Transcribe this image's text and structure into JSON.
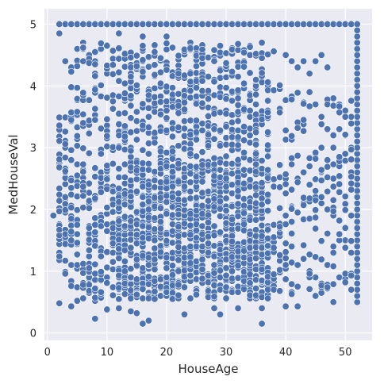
{
  "chart_data": {
    "type": "scatter",
    "title": "",
    "xlabel": "HouseAge",
    "ylabel": "MedHouseVal",
    "xlim": [
      -0.5,
      54.5
    ],
    "ylim": [
      -0.12,
      5.25
    ],
    "xticks": [
      0,
      10,
      20,
      30,
      40,
      50
    ],
    "yticks": [
      0,
      1,
      2,
      3,
      4,
      5
    ],
    "grid": true,
    "background_color": "#eaeaf2",
    "grid_color": "#ffffff",
    "marker_color": "#4c72b0",
    "marker_edge_color": "#ffffff",
    "series": [
      {
        "points": [
          [
            2,
            5.0
          ],
          [
            3,
            5.0
          ],
          [
            4,
            5.0
          ],
          [
            5,
            5.0
          ],
          [
            6,
            5.0
          ],
          [
            7,
            5.0
          ],
          [
            8,
            5.0
          ],
          [
            9,
            5.0
          ],
          [
            10,
            5.0
          ],
          [
            11,
            5.0
          ],
          [
            12,
            5.0
          ],
          [
            13,
            5.0
          ],
          [
            14,
            5.0
          ],
          [
            15,
            5.0
          ],
          [
            16,
            5.0
          ],
          [
            17,
            5.0
          ],
          [
            18,
            5.0
          ],
          [
            19,
            5.0
          ],
          [
            20,
            5.0
          ],
          [
            21,
            5.0
          ],
          [
            22,
            5.0
          ],
          [
            23,
            5.0
          ],
          [
            24,
            5.0
          ],
          [
            25,
            5.0
          ],
          [
            26,
            5.0
          ],
          [
            27,
            5.0
          ],
          [
            28,
            5.0
          ],
          [
            29,
            5.0
          ],
          [
            30,
            5.0
          ],
          [
            31,
            5.0
          ],
          [
            32,
            5.0
          ],
          [
            33,
            5.0
          ],
          [
            34,
            5.0
          ],
          [
            35,
            5.0
          ],
          [
            36,
            5.0
          ],
          [
            37,
            5.0
          ],
          [
            38,
            5.0
          ],
          [
            39,
            5.0
          ],
          [
            40,
            5.0
          ],
          [
            41,
            5.0
          ],
          [
            42,
            5.0
          ],
          [
            43,
            5.0
          ],
          [
            44,
            5.0
          ],
          [
            45,
            5.0
          ],
          [
            46,
            5.0
          ],
          [
            47,
            5.0
          ],
          [
            48,
            5.0
          ],
          [
            49,
            5.0
          ],
          [
            50,
            5.0
          ],
          [
            51,
            5.0
          ],
          [
            52,
            5.0
          ],
          [
            52,
            0.5
          ],
          [
            52,
            0.6
          ],
          [
            52,
            0.7
          ],
          [
            52,
            0.8
          ],
          [
            52,
            0.9
          ],
          [
            52,
            1.0
          ],
          [
            52,
            1.1
          ],
          [
            52,
            1.2
          ],
          [
            52,
            1.3
          ],
          [
            52,
            1.4
          ],
          [
            52,
            1.5
          ],
          [
            52,
            1.6
          ],
          [
            52,
            1.7
          ],
          [
            52,
            1.8
          ],
          [
            52,
            1.9
          ],
          [
            52,
            2.0
          ],
          [
            52,
            2.1
          ],
          [
            52,
            2.2
          ],
          [
            52,
            2.3
          ],
          [
            52,
            2.4
          ],
          [
            52,
            2.5
          ],
          [
            52,
            2.6
          ],
          [
            52,
            2.7
          ],
          [
            52,
            2.8
          ],
          [
            52,
            2.9
          ],
          [
            52,
            3.0
          ],
          [
            52,
            3.1
          ],
          [
            52,
            3.2
          ],
          [
            52,
            3.3
          ],
          [
            52,
            3.4
          ],
          [
            52,
            3.5
          ],
          [
            52,
            3.6
          ],
          [
            52,
            3.7
          ],
          [
            52,
            3.8
          ],
          [
            52,
            3.9
          ],
          [
            52,
            4.0
          ],
          [
            52,
            4.1
          ],
          [
            52,
            4.2
          ],
          [
            52,
            4.3
          ],
          [
            52,
            4.4
          ],
          [
            52,
            4.5
          ],
          [
            52,
            4.6
          ],
          [
            52,
            4.7
          ],
          [
            52,
            4.8
          ],
          [
            52,
            4.9
          ],
          [
            1,
            1.9
          ],
          [
            2,
            0.48
          ],
          [
            4,
            0.43
          ],
          [
            5,
            0.52
          ],
          [
            8,
            0.23
          ],
          [
            8,
            0.52
          ],
          [
            10,
            0.38
          ],
          [
            12,
            0.4
          ],
          [
            14,
            0.35
          ],
          [
            15,
            0.32
          ],
          [
            16,
            0.15
          ],
          [
            17,
            0.2
          ],
          [
            23,
            0.3
          ],
          [
            28,
            0.4
          ],
          [
            29,
            0.3
          ],
          [
            32,
            0.4
          ],
          [
            36,
            0.15
          ],
          [
            36,
            0.4
          ],
          [
            40,
            0.43
          ],
          [
            42,
            0.43
          ],
          [
            45,
            0.6
          ],
          [
            46,
            0.65
          ],
          [
            48,
            0.5
          ],
          [
            49,
            0.9
          ],
          [
            50,
            0.88
          ],
          [
            51,
            0.7
          ],
          [
            2,
            4.85
          ],
          [
            3,
            4.4
          ],
          [
            4,
            4.3
          ],
          [
            5,
            4.6
          ],
          [
            6,
            4.7
          ],
          [
            7,
            4.5
          ],
          [
            8,
            4.4
          ],
          [
            9,
            4.6
          ],
          [
            10,
            4.2
          ],
          [
            12,
            4.85
          ],
          [
            16,
            4.8
          ],
          [
            20,
            4.8
          ],
          [
            24,
            4.7
          ],
          [
            40,
            4.5
          ],
          [
            41,
            4.4
          ],
          [
            42,
            4.3
          ],
          [
            43,
            4.4
          ],
          [
            44,
            4.2
          ],
          [
            45,
            4.4
          ],
          [
            46,
            4.5
          ],
          [
            47,
            4.3
          ],
          [
            48,
            3.8
          ],
          [
            49,
            3.7
          ],
          [
            50,
            3.6
          ],
          [
            51,
            3.5
          ],
          [
            44,
            3.9
          ],
          [
            45,
            3.7
          ],
          [
            46,
            3.5
          ],
          [
            47,
            3.3
          ],
          [
            48,
            3.2
          ],
          [
            49,
            3.3
          ],
          [
            50,
            3.2
          ],
          [
            51,
            3.0
          ],
          [
            44,
            2.4
          ],
          [
            45,
            2.2
          ],
          [
            46,
            2.1
          ],
          [
            47,
            2.0
          ],
          [
            48,
            1.9
          ],
          [
            49,
            1.6
          ],
          [
            50,
            1.5
          ],
          [
            51,
            1.3
          ],
          [
            43,
            1.2
          ],
          [
            44,
            1.0
          ],
          [
            45,
            0.9
          ],
          [
            46,
            0.8
          ],
          [
            47,
            1.1
          ],
          [
            48,
            1.3
          ],
          [
            49,
            1.5
          ],
          [
            50,
            1.7
          ],
          [
            51,
            1.9
          ],
          [
            48,
            2.5
          ],
          [
            49,
            2.7
          ],
          [
            50,
            2.9
          ],
          [
            51,
            2.6
          ],
          [
            47,
            2.8
          ],
          [
            46,
            3.0
          ],
          [
            45,
            2.9
          ],
          [
            44,
            2.7
          ],
          [
            43,
            2.6
          ],
          [
            42,
            2.5
          ]
        ]
      }
    ]
  }
}
